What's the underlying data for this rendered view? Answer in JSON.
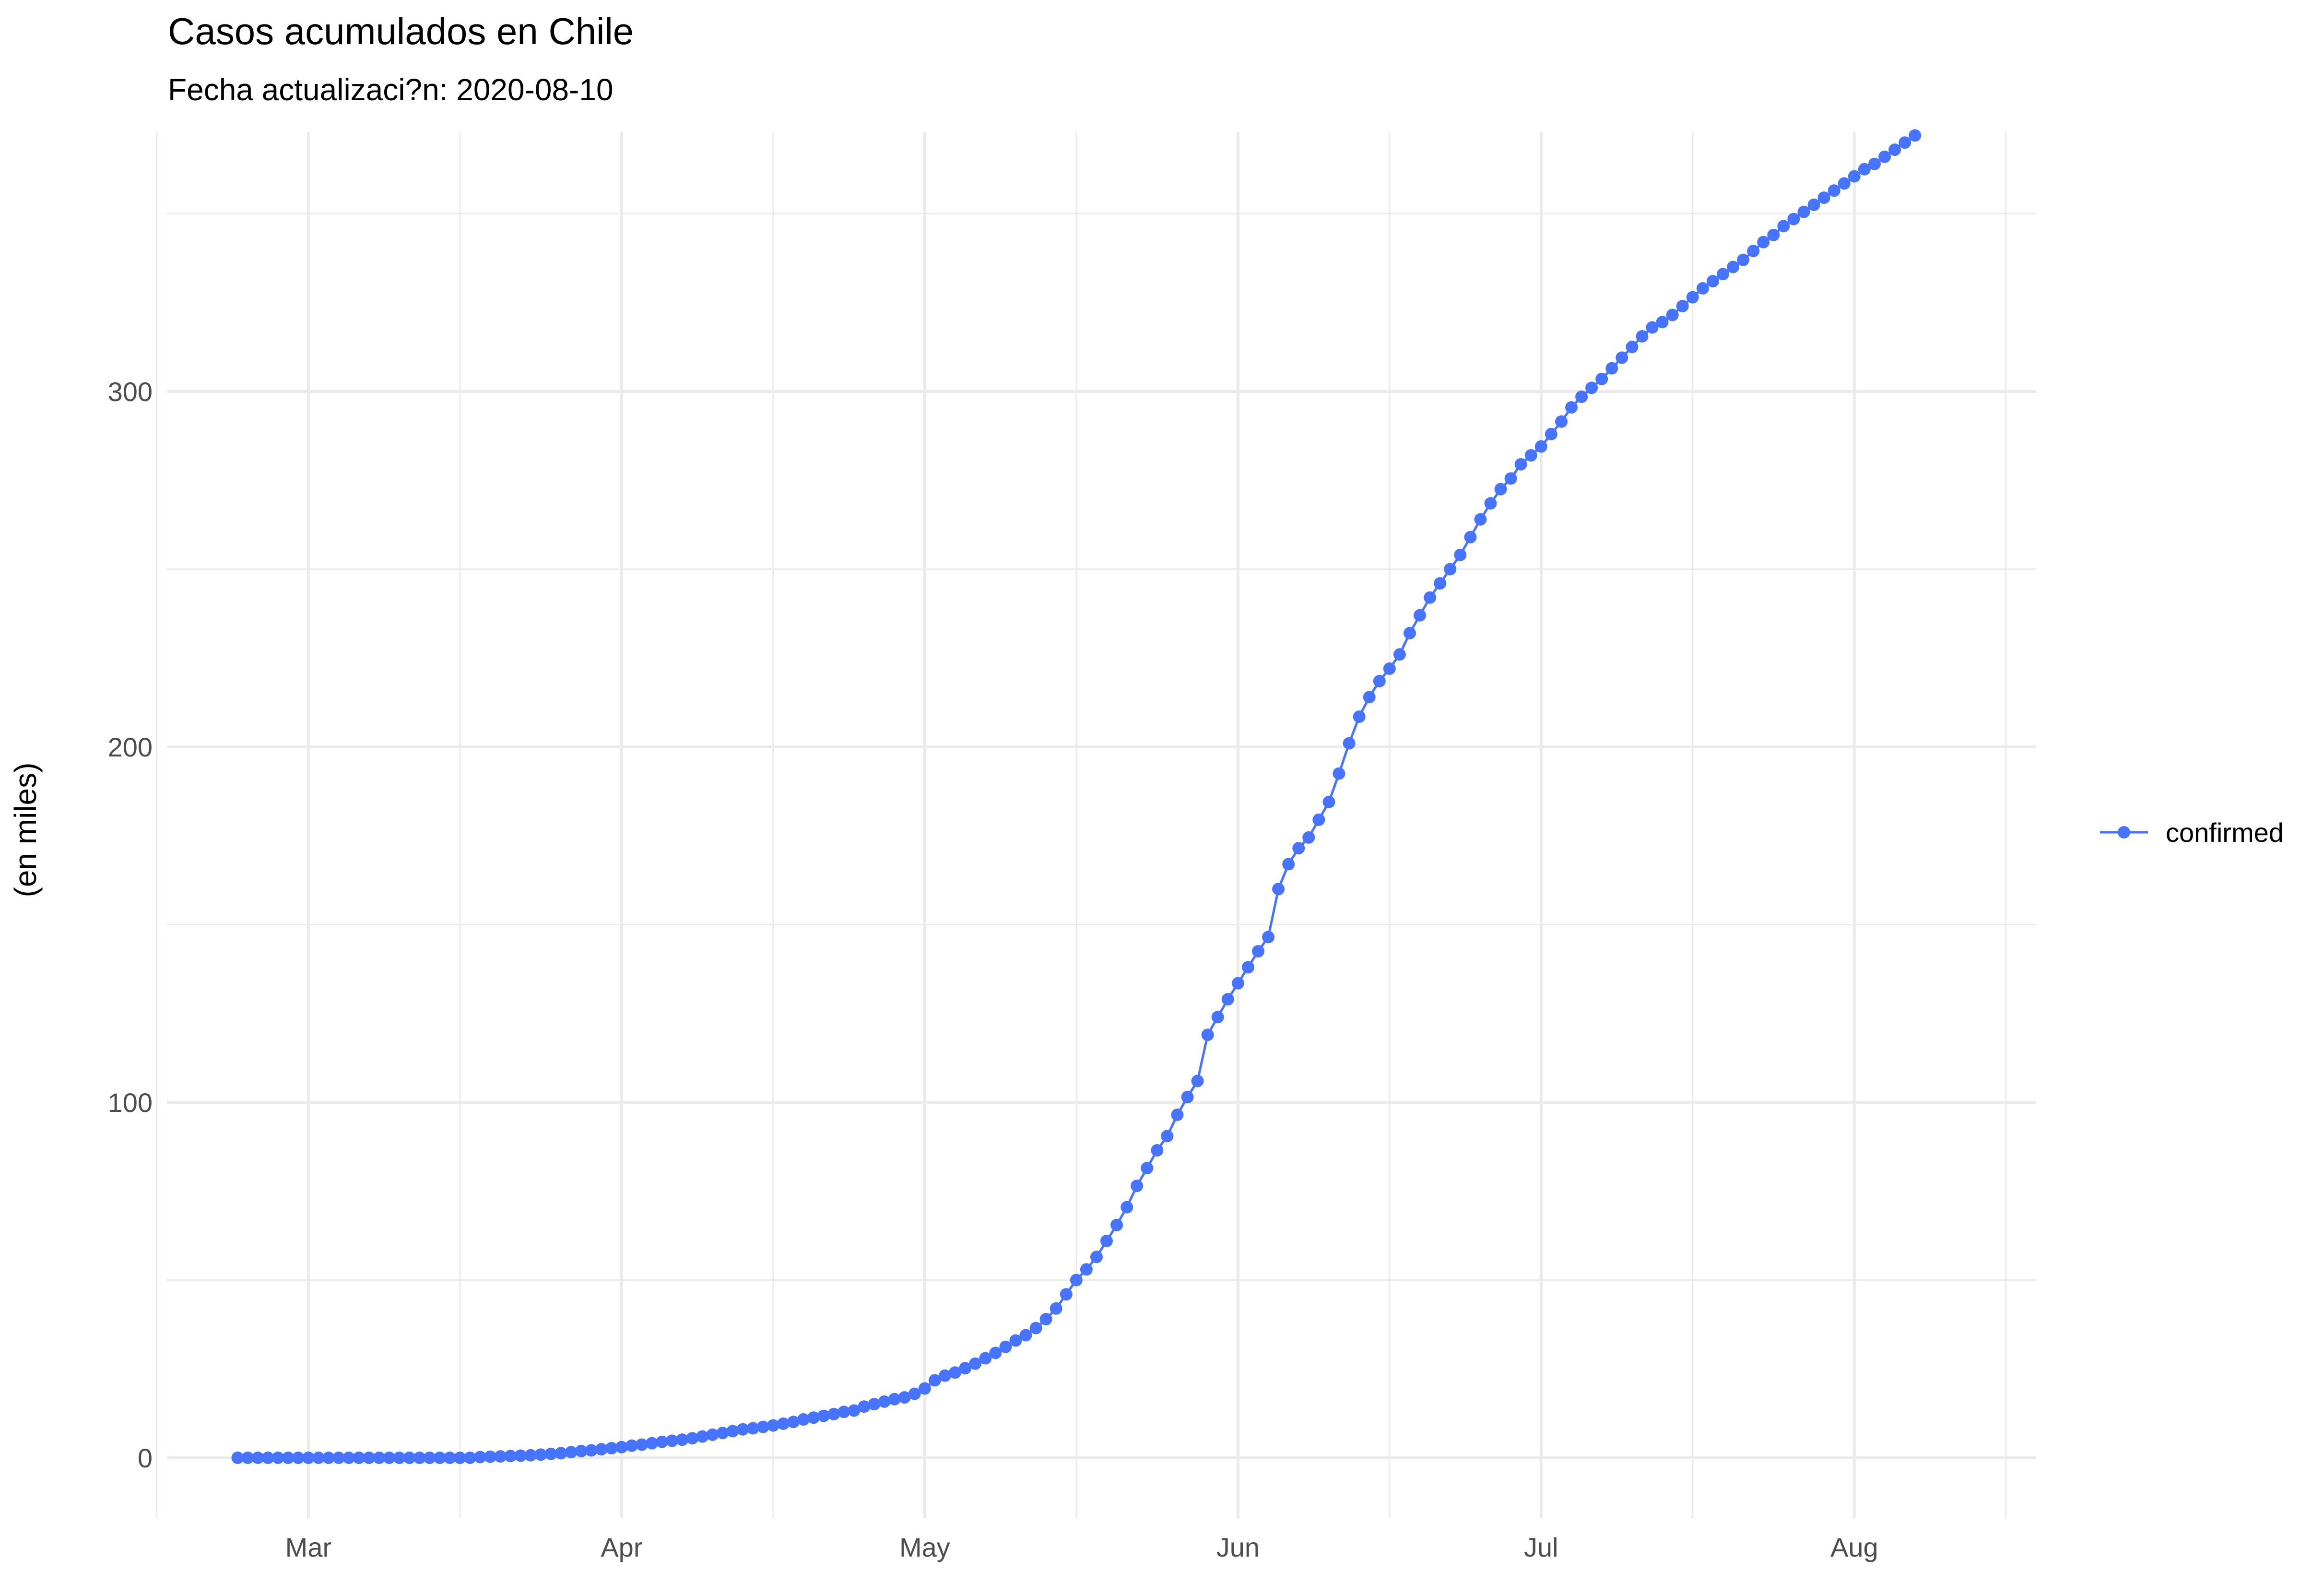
{
  "chart_data": {
    "type": "line",
    "title": "Casos acumulados en Chile",
    "subtitle": "Fecha actualizaci?n: 2020-08-10",
    "xlabel": "",
    "ylabel": "(en miles)",
    "x_start": "2020-02-23",
    "x_end": "2020-08-10",
    "xlim": [
      "2020-02-16",
      "2020-08-19"
    ],
    "ylim": [
      -17,
      373
    ],
    "x_ticks": [
      {
        "date": "2020-03-01",
        "label": "Mar"
      },
      {
        "date": "2020-04-01",
        "label": "Apr"
      },
      {
        "date": "2020-05-01",
        "label": "May"
      },
      {
        "date": "2020-06-01",
        "label": "Jun"
      },
      {
        "date": "2020-07-01",
        "label": "Jul"
      },
      {
        "date": "2020-08-01",
        "label": "Aug"
      }
    ],
    "x_minor_ticks": [
      "2020-02-15",
      "2020-03-16",
      "2020-04-16",
      "2020-05-16",
      "2020-06-16",
      "2020-07-16",
      "2020-08-16"
    ],
    "y_ticks": [
      0,
      100,
      200,
      300
    ],
    "y_minor_ticks": [
      50,
      150,
      250,
      350
    ],
    "grid": true,
    "legend_position": "right",
    "color": "#4673FF",
    "series": [
      {
        "name": "confirmed",
        "values": [
          0,
          0,
          0,
          0,
          0,
          0,
          0,
          0,
          0,
          0,
          0,
          0,
          0,
          0,
          0,
          0,
          0,
          0,
          0,
          0,
          0,
          0,
          0,
          0,
          0.2,
          0.3,
          0.4,
          0.5,
          0.6,
          0.7,
          0.9,
          1.1,
          1.3,
          1.6,
          1.9,
          2.1,
          2.4,
          2.7,
          3.0,
          3.4,
          3.7,
          4.1,
          4.5,
          4.8,
          5.1,
          5.5,
          6.0,
          6.5,
          7.0,
          7.5,
          8.0,
          8.3,
          8.7,
          9.1,
          9.6,
          10.1,
          10.8,
          11.3,
          11.8,
          12.3,
          12.9,
          13.3,
          14.4,
          15.1,
          15.8,
          16.5,
          17.0,
          18.0,
          19.5,
          21.8,
          23.1,
          24.0,
          25.2,
          26.5,
          28.0,
          29.5,
          31.2,
          33.0,
          34.5,
          36.5,
          39.0,
          42.0,
          46.0,
          50.0,
          53.0,
          56.5,
          61.0,
          65.5,
          70.5,
          76.5,
          81.5,
          86.5,
          90.5,
          96.5,
          101.5,
          106.0,
          119.0,
          124.0,
          129.0,
          133.5,
          138.0,
          142.5,
          146.5,
          160.0,
          167.0,
          171.5,
          174.5,
          179.5,
          184.5,
          192.5,
          201.0,
          208.5,
          214.0,
          218.5,
          222.0,
          226.0,
          232.0,
          237.0,
          242.0,
          246.0,
          250.0,
          254.0,
          259.0,
          264.0,
          268.5,
          272.5,
          275.5,
          279.5,
          282.0,
          284.5,
          288.0,
          291.5,
          295.5,
          298.5,
          301.0,
          303.5,
          306.5,
          309.5,
          312.5,
          315.5,
          318.0,
          319.5,
          321.5,
          324.0,
          326.5,
          329.0,
          331.0,
          333.0,
          335.0,
          337.0,
          339.5,
          342.0,
          344.0,
          346.5,
          348.5,
          350.5,
          352.5,
          354.5,
          356.5,
          358.5,
          360.5,
          362.5,
          364.0,
          366.0,
          368.0,
          370.0,
          372.0
        ]
      }
    ]
  }
}
